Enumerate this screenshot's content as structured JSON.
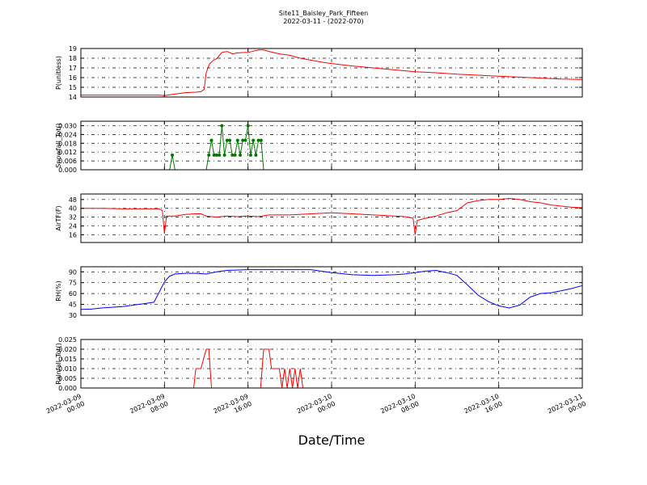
{
  "title": "Site11_Baisley_Park_Fifteen",
  "subtitle": "2022-03-11 - (2022-070)",
  "chart_data": {
    "type": "line",
    "xlabel": "Date/Time",
    "x_range": [
      "2022-03-09 00:00",
      "2022-03-11 00:00"
    ],
    "x_ticks": [
      {
        "line1": "2022-03-09",
        "line2": "00:00",
        "hours": 0
      },
      {
        "line1": "2022-03-09",
        "line2": "08:00",
        "hours": 8
      },
      {
        "line1": "2022-03-09",
        "line2": "16:00",
        "hours": 16
      },
      {
        "line1": "2022-03-10",
        "line2": "00:00",
        "hours": 24
      },
      {
        "line1": "2022-03-10",
        "line2": "08:00",
        "hours": 32
      },
      {
        "line1": "2022-03-10",
        "line2": "16:00",
        "hours": 40
      },
      {
        "line1": "2022-03-11",
        "line2": "00:00",
        "hours": 48
      }
    ],
    "panels": [
      {
        "ylabel": "P(unitless)",
        "ylim": [
          14,
          19
        ],
        "yticks": [
          "14",
          "15",
          "16",
          "17",
          "18",
          "19"
        ],
        "ytick_values": [
          14,
          15,
          16,
          17,
          18,
          19
        ],
        "color": "#ff0000",
        "markers": false,
        "x": [
          0,
          7.5,
          8,
          9,
          10,
          11,
          11.5,
          11.8,
          12,
          12.3,
          12.7,
          13,
          13.5,
          14,
          14.5,
          15,
          16,
          17,
          17.5,
          18,
          19,
          20,
          21,
          22,
          23,
          24,
          26,
          28,
          30,
          32,
          34,
          36,
          38,
          40,
          42,
          44,
          46,
          48
        ],
        "y": [
          14.2,
          14.2,
          14.15,
          14.3,
          14.45,
          14.5,
          14.55,
          14.8,
          16.5,
          17.4,
          17.8,
          17.95,
          18.6,
          18.7,
          18.45,
          18.55,
          18.6,
          18.85,
          18.85,
          18.7,
          18.45,
          18.3,
          18.0,
          17.8,
          17.6,
          17.45,
          17.2,
          17.0,
          16.8,
          16.6,
          16.5,
          16.35,
          16.25,
          16.15,
          16.05,
          15.95,
          15.85,
          15.8
        ]
      },
      {
        "ylabel": "Snowfall_Tot()",
        "ylim": [
          0,
          0.033
        ],
        "yticks": [
          "0.000",
          "0.006",
          "0.012",
          "0.018",
          "0.024",
          "0.030"
        ],
        "ytick_values": [
          0,
          0.006,
          0.012,
          0.018,
          0.024,
          0.03
        ],
        "color": "#007700",
        "markers": true,
        "x": [
          0,
          8.5,
          8.75,
          9,
          12,
          12.25,
          12.5,
          12.75,
          13,
          13.25,
          13.5,
          13.75,
          14,
          14.25,
          14.5,
          14.75,
          15,
          15.25,
          15.5,
          15.75,
          16,
          16.25,
          16.5,
          16.75,
          17,
          17.25,
          17.5,
          17.75,
          18,
          18.25,
          18.5,
          48
        ],
        "y": [
          0,
          0,
          0.01,
          0,
          0,
          0.01,
          0.02,
          0.01,
          0.01,
          0.01,
          0.03,
          0.01,
          0.02,
          0.02,
          0.01,
          0.01,
          0.02,
          0.01,
          0.02,
          0.02,
          0.03,
          0.01,
          0.02,
          0.01,
          0.02,
          0.02,
          0,
          0,
          0,
          0,
          0,
          0
        ]
      },
      {
        "ylabel": "AirTF(F)",
        "ylim": [
          9,
          53
        ],
        "yticks": [
          "16",
          "24",
          "32",
          "40",
          "48"
        ],
        "ytick_values": [
          16,
          24,
          32,
          40,
          48
        ],
        "color": "#ff0000",
        "markers": false,
        "x": [
          0,
          2,
          4,
          6,
          7,
          7.5,
          7.8,
          8,
          8.2,
          9,
          10,
          11,
          11.5,
          12,
          12.5,
          13,
          14,
          15,
          16,
          17,
          18,
          19,
          20,
          22,
          24,
          26,
          28,
          30,
          31,
          31.8,
          32,
          32.2,
          33,
          34,
          35,
          36,
          37,
          38,
          39,
          40,
          41,
          42,
          43,
          44,
          45,
          46,
          47,
          48
        ],
        "y": [
          40,
          40,
          39.5,
          39.5,
          39.5,
          39.5,
          38,
          17,
          33,
          33,
          34.5,
          35,
          35,
          33,
          32.5,
          32,
          33,
          32.5,
          33,
          32.5,
          34,
          34,
          34,
          35,
          36,
          35,
          34,
          33,
          32.5,
          31,
          16,
          29,
          31,
          33,
          36,
          38,
          45,
          47,
          48,
          48,
          49,
          48,
          46,
          45,
          43,
          42,
          41,
          40.5
        ]
      },
      {
        "ylabel": "RH(%)",
        "ylim": [
          30,
          97
        ],
        "yticks": [
          "30",
          "45",
          "60",
          "75",
          "90"
        ],
        "ytick_values": [
          30,
          45,
          60,
          75,
          90
        ],
        "color": "#0000ff",
        "markers": false,
        "x": [
          0,
          1,
          2,
          3,
          4,
          5,
          6,
          7,
          7.5,
          8,
          8.5,
          9,
          10,
          11,
          12,
          13,
          14,
          16,
          18,
          20,
          22,
          24,
          26,
          28,
          30,
          31,
          32,
          33,
          34,
          35,
          36,
          37,
          38,
          39,
          40,
          41,
          42,
          43,
          44,
          45,
          46,
          47,
          48
        ],
        "y": [
          38,
          38.5,
          40,
          41,
          42,
          44,
          46,
          48,
          62,
          76,
          84,
          87,
          88,
          88,
          87,
          90,
          92,
          93,
          93,
          93,
          93,
          89,
          86,
          85,
          86,
          87,
          89,
          91,
          92,
          89,
          85,
          72,
          58,
          49,
          43,
          40,
          44,
          55,
          60,
          61,
          64,
          67,
          71
        ]
      },
      {
        "ylabel": "Rainfall_Tot()",
        "ylim": [
          0,
          0.025
        ],
        "yticks": [
          "0.000",
          "0.005",
          "0.010",
          "0.015",
          "0.020",
          "0.025"
        ],
        "ytick_values": [
          0,
          0.005,
          0.01,
          0.015,
          0.02,
          0.025
        ],
        "color": "#ff0000",
        "markers": false,
        "x": [
          0,
          10.8,
          11,
          11.5,
          12,
          12.25,
          12.5,
          17.2,
          17.5,
          18,
          18.25,
          18.5,
          19,
          19.25,
          19.5,
          19.75,
          20,
          20.25,
          20.5,
          20.75,
          21,
          21.25,
          48
        ],
        "y": [
          0,
          0,
          0.01,
          0.01,
          0.02,
          0.02,
          0,
          0,
          0.02,
          0.02,
          0.01,
          0.01,
          0.01,
          0,
          0.01,
          0,
          0.01,
          0,
          0.01,
          0,
          0.01,
          0,
          0
        ]
      }
    ]
  }
}
